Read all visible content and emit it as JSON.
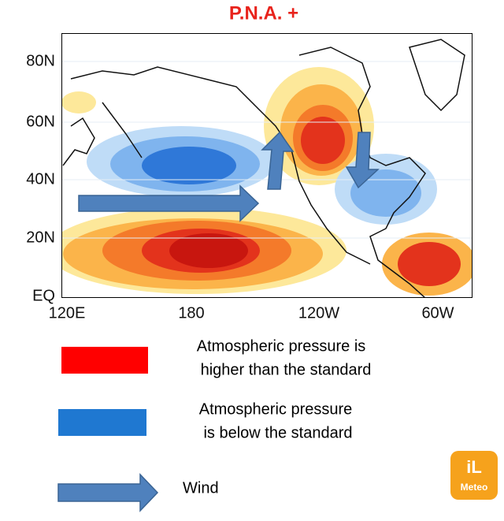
{
  "title": "P.N.A. +",
  "map": {
    "lat_labels": [
      "80N",
      "60N",
      "40N",
      "20N",
      "EQ"
    ],
    "lon_labels": [
      "120E",
      "180",
      "120W",
      "60W"
    ]
  },
  "legend": [
    {
      "lines": [
        "Atmospheric pressure is",
        "higher than the standard"
      ]
    },
    {
      "lines": [
        "Atmospheric pressure",
        "is below the standard"
      ]
    },
    {
      "lines": [
        "Wind"
      ]
    }
  ],
  "logo": {
    "mark": "iL",
    "name": "Meteo"
  }
}
